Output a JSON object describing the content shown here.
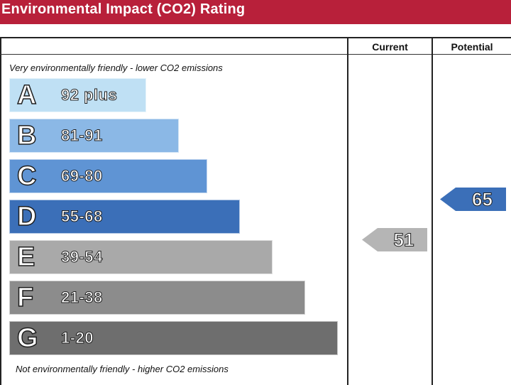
{
  "title": "Environmental Impact (CO2) Rating",
  "columns": {
    "current": "Current",
    "potential": "Potential"
  },
  "captions": {
    "top": "Very environmentally friendly - lower CO2 emissions",
    "bottom": "Not environmentally friendly - higher CO2 emissions"
  },
  "chart_data": {
    "type": "bar",
    "title": "Environmental Impact (CO2) Rating",
    "categories": [
      "A",
      "B",
      "C",
      "D",
      "E",
      "F",
      "G"
    ],
    "bands": [
      {
        "letter": "A",
        "range": "92 plus",
        "color": "#bfe0f4"
      },
      {
        "letter": "B",
        "range": "81-91",
        "color": "#8bb8e6"
      },
      {
        "letter": "C",
        "range": "69-80",
        "color": "#5f94d4"
      },
      {
        "letter": "D",
        "range": "55-68",
        "color": "#3b6fb8"
      },
      {
        "letter": "E",
        "range": "39-54",
        "color": "#a9a9a9"
      },
      {
        "letter": "F",
        "range": "21-38",
        "color": "#8c8c8c"
      },
      {
        "letter": "G",
        "range": "1-20",
        "color": "#6e6e6e"
      }
    ],
    "ratings": {
      "current": {
        "value": 51,
        "band": "E",
        "color": "#b5b5b5"
      },
      "potential": {
        "value": 65,
        "band": "D",
        "color": "#3b6fb8"
      }
    }
  }
}
